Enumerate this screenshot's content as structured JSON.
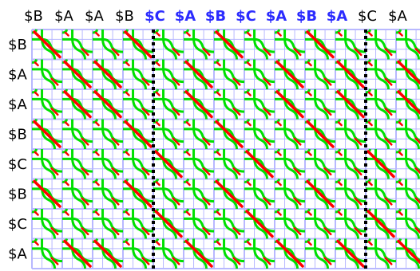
{
  "diagram": {
    "top_labels": [
      {
        "text": "$B",
        "highlight": false
      },
      {
        "text": "$A",
        "highlight": false
      },
      {
        "text": "$A",
        "highlight": false
      },
      {
        "text": "$B",
        "highlight": false
      },
      {
        "text": "$C",
        "highlight": true
      },
      {
        "text": "$A",
        "highlight": true
      },
      {
        "text": "$B",
        "highlight": true
      },
      {
        "text": "$C",
        "highlight": true
      },
      {
        "text": "$A",
        "highlight": true
      },
      {
        "text": "$B",
        "highlight": true
      },
      {
        "text": "$A",
        "highlight": true
      },
      {
        "text": "$C",
        "highlight": false
      },
      {
        "text": "$A",
        "highlight": false
      }
    ],
    "left_labels": [
      "$B",
      "$A",
      "$A",
      "$B",
      "$C",
      "$B",
      "$C",
      "$A"
    ],
    "colors": {
      "grid": "#b8b8ff",
      "path": "#00e000",
      "diagonal": "#ff0000",
      "divider": "#000000",
      "highlight_text": "#2b2bff"
    }
  }
}
